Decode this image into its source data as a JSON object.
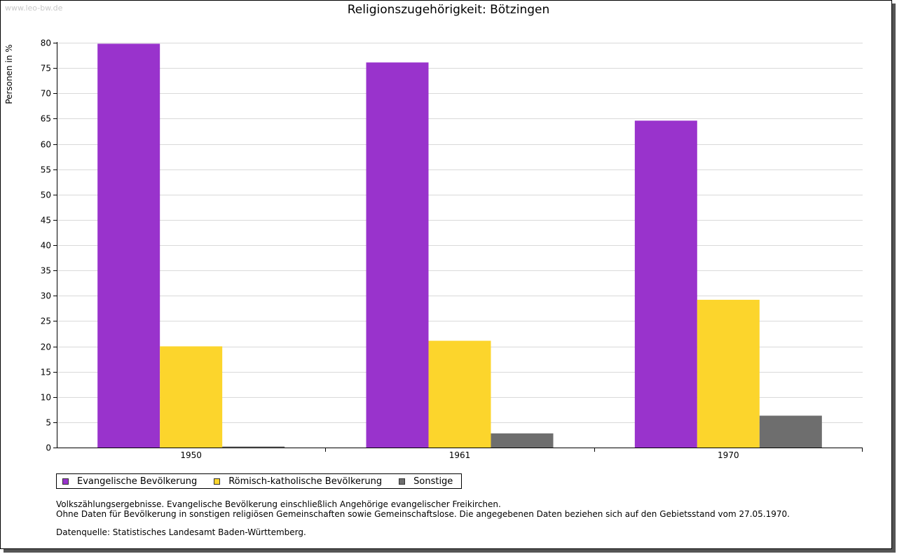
{
  "watermark": "www.leo-bw.de",
  "chart_data": {
    "type": "bar",
    "title": "Religionszugehörigkeit: Bötzingen",
    "xlabel": "",
    "ylabel": "Personen in %",
    "ylim": [
      0,
      80
    ],
    "yticks": [
      0,
      5,
      10,
      15,
      20,
      25,
      30,
      35,
      40,
      45,
      50,
      55,
      60,
      65,
      70,
      75,
      80
    ],
    "grid": true,
    "legend_position": "bottom-left",
    "categories": [
      "1950",
      "1961",
      "1970"
    ],
    "series": [
      {
        "name": "Evangelische Bevölkerung",
        "color": "#9933cc",
        "values": [
          79.8,
          76.1,
          64.6
        ]
      },
      {
        "name": "Römisch-katholische Bevölkerung",
        "color": "#fcd52c",
        "values": [
          20.0,
          21.1,
          29.2
        ]
      },
      {
        "name": "Sonstige",
        "color": "#6e6e6e",
        "values": [
          0.2,
          2.8,
          6.3
        ]
      }
    ]
  },
  "notes": {
    "line1": "Volkszählungsergebnisse. Evangelische Bevölkerung einschließlich Angehörige evangelischer Freikirchen.",
    "line2": "Ohne Daten für Bevölkerung in sonstigen religiösen Gemeinschaften sowie Gemeinschaftslose. Die angegebenen Daten beziehen sich auf den Gebietsstand vom 27.05.1970.",
    "source": "Datenquelle: Statistisches Landesamt Baden-Württemberg."
  }
}
